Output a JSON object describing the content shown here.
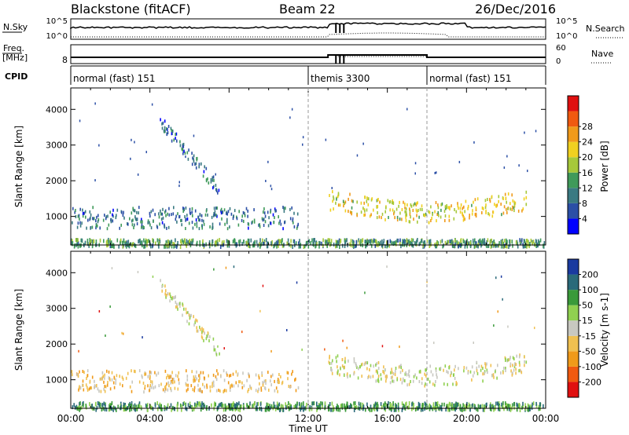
{
  "header": {
    "radar": "Blackstone (fitACF)",
    "beam": "Beam 22",
    "date": "26/Dec/2016"
  },
  "sky_panel": {
    "left_label": "N.Sky",
    "left_ticks": [
      "10^5",
      "10^0"
    ],
    "right_label": "N.Search",
    "right_ticks": [
      "10^5",
      "10^0"
    ]
  },
  "freq_panel": {
    "left_label_1": "Freq.",
    "left_label_2": "[MHz]",
    "left_ticks": [
      "8"
    ],
    "right_label": "Nave",
    "right_ticks": [
      "60",
      "0"
    ]
  },
  "cpid_panel": {
    "label": "CPID",
    "segments": [
      {
        "name": "normal (fast) 151",
        "start_hr": 0
      },
      {
        "name": "themis 3300",
        "start_hr": 12
      },
      {
        "name": "normal (fast) 151",
        "start_hr": 18
      }
    ]
  },
  "colors": {
    "power": [
      "#0000ff",
      "#2b4fa6",
      "#3a7a82",
      "#3f9a5a",
      "#a6c83a",
      "#f0d020",
      "#f09a1a",
      "#f05a10",
      "#e01010"
    ],
    "velocity": [
      "#e01010",
      "#f05a10",
      "#f09a1a",
      "#f0c050",
      "#c8c8c0",
      "#90d050",
      "#3a9a3a",
      "#2a6a7a",
      "#1a3aa0"
    ]
  },
  "chart_data": [
    {
      "type": "heatmap",
      "title": "",
      "xlabel": "Time UT",
      "ylabel": "Slant Range [km]",
      "xlim": [
        0,
        24
      ],
      "ylim": [
        200,
        4600
      ],
      "y_ticks": [
        1000,
        2000,
        3000,
        4000
      ],
      "colorbar": {
        "label": "Power [dB]",
        "ticks": [
          "4",
          "8",
          "12",
          "16",
          "20",
          "24",
          "28"
        ],
        "range": [
          0,
          30
        ]
      },
      "scatter_regions": [
        {
          "name": "near-range band",
          "t_start": 0,
          "t_end": 24,
          "range_km": [
            200,
            400
          ],
          "power_db": 12
        },
        {
          "name": "morning echo band",
          "t_start": 0,
          "t_end": 11.5,
          "range_km": [
            700,
            1300
          ],
          "power_db": 8
        },
        {
          "name": "slanting trail",
          "t_start": 4.5,
          "t_end": 7.5,
          "range_km": [
            1700,
            3800
          ],
          "power_db": 6
        },
        {
          "name": "afternoon band",
          "t_start": 13,
          "t_end": 23,
          "range_km": [
            800,
            1900
          ],
          "power_db": 20
        }
      ]
    },
    {
      "type": "heatmap",
      "title": "",
      "xlabel": "Time UT",
      "ylabel": "Slant Range [km]",
      "xlim": [
        0,
        24
      ],
      "ylim": [
        200,
        4600
      ],
      "y_ticks": [
        1000,
        2000,
        3000,
        4000
      ],
      "x_tick_labels": [
        "00:00",
        "04:00",
        "08:00",
        "12:00",
        "16:00",
        "20:00",
        "00:00"
      ],
      "colorbar": {
        "label": "Velocity [m s-1]",
        "ticks": [
          "200",
          "100",
          "50",
          "15",
          "-15",
          "-50",
          "-100",
          "-200"
        ],
        "range": [
          -250,
          250
        ]
      },
      "scatter_regions": [
        {
          "name": "near-range band",
          "t_start": 0,
          "t_end": 24,
          "range_km": [
            200,
            400
          ],
          "velocity_ms": 20
        },
        {
          "name": "morning echo band",
          "t_start": 0,
          "t_end": 11.5,
          "range_km": [
            700,
            1300
          ],
          "velocity_ms": -40
        },
        {
          "name": "slanting trail",
          "t_start": 4.5,
          "t_end": 7.5,
          "range_km": [
            1700,
            3800
          ],
          "velocity_ms": 0
        },
        {
          "name": "afternoon band",
          "t_start": 13,
          "t_end": 23,
          "range_km": [
            800,
            1900
          ],
          "velocity_ms": 0
        }
      ]
    }
  ]
}
